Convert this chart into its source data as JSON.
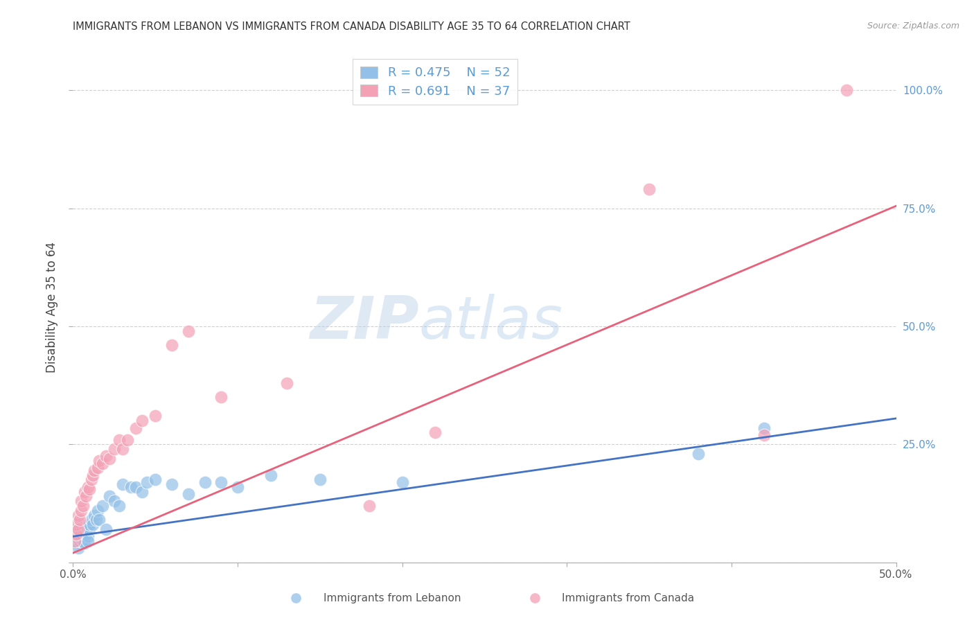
{
  "title": "IMMIGRANTS FROM LEBANON VS IMMIGRANTS FROM CANADA DISABILITY AGE 35 TO 64 CORRELATION CHART",
  "source": "Source: ZipAtlas.com",
  "ylabel": "Disability Age 35 to 64",
  "x_min": 0.0,
  "x_max": 0.5,
  "y_min": 0.0,
  "y_max": 1.08,
  "y_ticks": [
    0.0,
    0.25,
    0.5,
    0.75,
    1.0
  ],
  "y_tick_labels_right": [
    "",
    "25.0%",
    "50.0%",
    "75.0%",
    "100.0%"
  ],
  "x_ticks": [
    0.0,
    0.1,
    0.2,
    0.3,
    0.4,
    0.5
  ],
  "x_tick_labels": [
    "0.0%",
    "",
    "",
    "",
    "",
    "50.0%"
  ],
  "legend_r1": "0.475",
  "legend_n1": "52",
  "legend_r2": "0.691",
  "legend_n2": "37",
  "color_blue": "#92C0E8",
  "color_pink": "#F4A0B5",
  "color_line_blue": "#4472C4",
  "color_line_pink": "#E8607A",
  "color_right_axis": "#5B9BD5",
  "watermark_zip": "ZIP",
  "watermark_atlas": "atlas",
  "background": "#ffffff",
  "lebanon_x": [
    0.001,
    0.001,
    0.002,
    0.002,
    0.002,
    0.003,
    0.003,
    0.003,
    0.004,
    0.004,
    0.004,
    0.005,
    0.005,
    0.005,
    0.006,
    0.006,
    0.006,
    0.007,
    0.007,
    0.008,
    0.008,
    0.009,
    0.009,
    0.01,
    0.01,
    0.011,
    0.012,
    0.013,
    0.014,
    0.015,
    0.016,
    0.018,
    0.02,
    0.022,
    0.025,
    0.028,
    0.03,
    0.035,
    0.038,
    0.042,
    0.045,
    0.05,
    0.06,
    0.07,
    0.08,
    0.09,
    0.1,
    0.12,
    0.15,
    0.2,
    0.38,
    0.42
  ],
  "lebanon_y": [
    0.055,
    0.045,
    0.06,
    0.04,
    0.07,
    0.05,
    0.065,
    0.03,
    0.055,
    0.045,
    0.07,
    0.06,
    0.05,
    0.08,
    0.045,
    0.065,
    0.055,
    0.07,
    0.04,
    0.06,
    0.075,
    0.055,
    0.045,
    0.07,
    0.08,
    0.09,
    0.08,
    0.1,
    0.09,
    0.11,
    0.09,
    0.12,
    0.07,
    0.14,
    0.13,
    0.12,
    0.165,
    0.16,
    0.16,
    0.15,
    0.17,
    0.175,
    0.165,
    0.145,
    0.17,
    0.17,
    0.16,
    0.185,
    0.175,
    0.17,
    0.23,
    0.285
  ],
  "canada_x": [
    0.001,
    0.002,
    0.002,
    0.003,
    0.003,
    0.004,
    0.005,
    0.005,
    0.006,
    0.007,
    0.008,
    0.009,
    0.01,
    0.011,
    0.012,
    0.013,
    0.015,
    0.016,
    0.018,
    0.02,
    0.022,
    0.025,
    0.028,
    0.03,
    0.033,
    0.038,
    0.042,
    0.05,
    0.06,
    0.07,
    0.09,
    0.13,
    0.18,
    0.22,
    0.35,
    0.42,
    0.47
  ],
  "canada_y": [
    0.045,
    0.06,
    0.08,
    0.07,
    0.1,
    0.09,
    0.11,
    0.13,
    0.12,
    0.15,
    0.14,
    0.16,
    0.155,
    0.175,
    0.185,
    0.195,
    0.2,
    0.215,
    0.21,
    0.225,
    0.22,
    0.24,
    0.26,
    0.24,
    0.26,
    0.285,
    0.3,
    0.31,
    0.46,
    0.49,
    0.35,
    0.38,
    0.12,
    0.275,
    0.79,
    0.27,
    1.0
  ],
  "blue_line_x0": 0.0,
  "blue_line_y0": 0.055,
  "blue_line_x1": 0.5,
  "blue_line_y1": 0.305,
  "pink_line_x0": 0.0,
  "pink_line_y0": 0.02,
  "pink_line_x1": 0.5,
  "pink_line_y1": 0.755
}
